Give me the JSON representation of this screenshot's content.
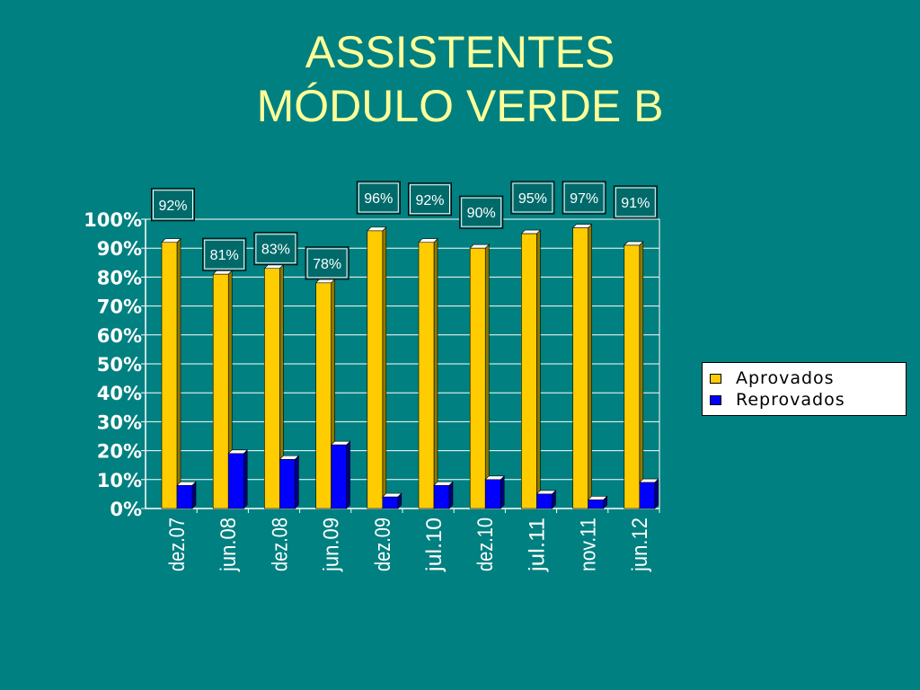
{
  "title": {
    "line1": "ASSISTENTES",
    "line2": "MÓDULO VERDE B"
  },
  "colors": {
    "background": "#008080",
    "title": "#FFFF99",
    "aprovados": "#FFCC00",
    "reprovados": "#0000FF",
    "label_box": "#006A6A"
  },
  "chart_data": {
    "type": "bar",
    "title": "",
    "xlabel": "",
    "ylabel": "",
    "ylim": [
      0,
      100
    ],
    "yticks": [
      "0%",
      "10%",
      "20%",
      "30%",
      "40%",
      "50%",
      "60%",
      "70%",
      "80%",
      "90%",
      "100%"
    ],
    "grid": true,
    "legend_position": "right",
    "categories": [
      "dez.07",
      "jun.08",
      "dez.08",
      "jun.09",
      "dez.09",
      "jul.10",
      "dez.10",
      "jul.11",
      "nov.11",
      "jun.12"
    ],
    "series": [
      {
        "name": "Aprovados",
        "values": [
          92,
          81,
          83,
          78,
          96,
          92,
          90,
          95,
          97,
          91
        ],
        "labels": [
          "92%",
          "81%",
          "83%",
          "78%",
          "96%",
          "92%",
          "90%",
          "95%",
          "97%",
          "91%"
        ]
      },
      {
        "name": "Reprovados",
        "values": [
          8,
          19,
          17,
          22,
          4,
          8,
          10,
          5,
          3,
          9
        ]
      }
    ]
  }
}
